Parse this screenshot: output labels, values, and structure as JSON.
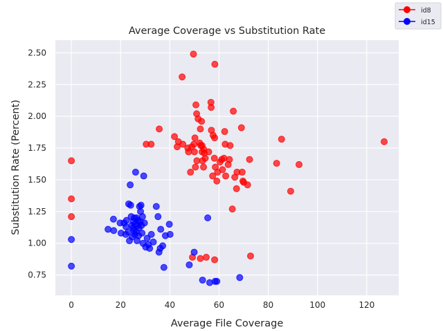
{
  "chart_data": {
    "type": "scatter",
    "title": "Average Coverage vs Substitution Rate",
    "xlabel": "Average File Coverage",
    "ylabel": "Substitution Rate (Percent)",
    "xlim": [
      -6.5,
      133
    ],
    "ylim": [
      0.59,
      2.6
    ],
    "xticks": [
      0,
      20,
      40,
      60,
      80,
      100,
      120
    ],
    "yticks": [
      0.75,
      1.0,
      1.25,
      1.5,
      1.75,
      2.0,
      2.25,
      2.5
    ],
    "ytick_labels": [
      "0.75",
      "1.00",
      "1.25",
      "1.50",
      "1.75",
      "2.00",
      "2.25",
      "2.50"
    ],
    "grid": true,
    "background": "#eaeaf2",
    "legend_position": "top-right (outside plot)",
    "series": [
      {
        "name": "id8",
        "color": "#ff0000",
        "marker": "circle",
        "points": [
          [
            0,
            1.65
          ],
          [
            0,
            1.35
          ],
          [
            0,
            1.21
          ],
          [
            30.4,
            1.78
          ],
          [
            32.4,
            1.78
          ],
          [
            35.7,
            1.9
          ],
          [
            41.9,
            1.84
          ],
          [
            43,
            1.76
          ],
          [
            43.5,
            1.8
          ],
          [
            45,
            2.31
          ],
          [
            45.3,
            1.78
          ],
          [
            47.3,
            1.75
          ],
          [
            47.6,
            1.72
          ],
          [
            48.4,
            1.56
          ],
          [
            48.9,
            1.76
          ],
          [
            49.2,
            0.89
          ],
          [
            49.6,
            2.49
          ],
          [
            49.8,
            1.78
          ],
          [
            50,
            1.72
          ],
          [
            50.2,
            1.83
          ],
          [
            50.4,
            1.6
          ],
          [
            50.6,
            2.09
          ],
          [
            51,
            1.65
          ],
          [
            50.9,
            2.02
          ],
          [
            51.5,
            1.98
          ],
          [
            52.1,
            1.79
          ],
          [
            52.4,
            1.9
          ],
          [
            52.4,
            0.88
          ],
          [
            52.6,
            1.77
          ],
          [
            52.9,
            1.96
          ],
          [
            53.1,
            1.72
          ],
          [
            53.1,
            1.77
          ],
          [
            53.3,
            1.65
          ],
          [
            53.7,
            1.6
          ],
          [
            53.8,
            1.74
          ],
          [
            54,
            1.71
          ],
          [
            54.4,
            1.67
          ],
          [
            54.8,
            0.89
          ],
          [
            55.8,
            1.72
          ],
          [
            56.7,
            2.11
          ],
          [
            56.8,
            2.07
          ],
          [
            56.9,
            1.89
          ],
          [
            57.4,
            1.53
          ],
          [
            57.6,
            1.85
          ],
          [
            58.1,
            1.67
          ],
          [
            58.2,
            0.87
          ],
          [
            58.2,
            1.83
          ],
          [
            58.3,
            2.41
          ],
          [
            58.5,
            1.6
          ],
          [
            59.1,
            1.49
          ],
          [
            59.4,
            1.56
          ],
          [
            60.4,
            1.64
          ],
          [
            61.1,
            1.66
          ],
          [
            61.4,
            1.58
          ],
          [
            62,
            1.67
          ],
          [
            62.3,
            1.88
          ],
          [
            62.5,
            1.78
          ],
          [
            62.7,
            1.53
          ],
          [
            63.7,
            1.62
          ],
          [
            64.2,
            1.66
          ],
          [
            64.5,
            1.77
          ],
          [
            65.4,
            1.27
          ],
          [
            65.8,
            2.04
          ],
          [
            66.4,
            1.52
          ],
          [
            67.1,
            1.43
          ],
          [
            67.3,
            1.56
          ],
          [
            69.1,
            1.91
          ],
          [
            69.4,
            1.56
          ],
          [
            69.7,
            1.49
          ],
          [
            70,
            1.48
          ],
          [
            71.6,
            1.46
          ],
          [
            72.4,
            1.66
          ],
          [
            72.8,
            0.9
          ],
          [
            83.4,
            1.63
          ],
          [
            85.4,
            1.82
          ],
          [
            89.1,
            1.41
          ],
          [
            92.5,
            1.62
          ],
          [
            127.1,
            1.8
          ]
        ]
      },
      {
        "name": "id15",
        "color": "#0000ff",
        "marker": "circle",
        "points": [
          [
            0,
            1.03
          ],
          [
            0,
            0.82
          ],
          [
            14.9,
            1.11
          ],
          [
            17.1,
            1.19
          ],
          [
            17.2,
            1.1
          ],
          [
            19.8,
            1.16
          ],
          [
            20.2,
            1.08
          ],
          [
            21.4,
            1.16
          ],
          [
            22.2,
            1.13
          ],
          [
            22.1,
            1.07
          ],
          [
            22.4,
            1.18
          ],
          [
            23.1,
            1.09
          ],
          [
            23.3,
            1.31
          ],
          [
            23.6,
            1.02
          ],
          [
            23.9,
            1.46
          ],
          [
            24.1,
            1.3
          ],
          [
            24.3,
            1.21
          ],
          [
            24.5,
            1.14
          ],
          [
            24.7,
            1.05
          ],
          [
            25,
            1.12
          ],
          [
            25.2,
            1.17
          ],
          [
            25.4,
            1.1
          ],
          [
            25.6,
            1.2
          ],
          [
            25.8,
            1.07
          ],
          [
            26,
            1.15
          ],
          [
            26.1,
            1.56
          ],
          [
            26.3,
            1.09
          ],
          [
            26.5,
            1.2
          ],
          [
            26.7,
            1.02
          ],
          [
            26.9,
            1.14
          ],
          [
            27.1,
            1.18
          ],
          [
            27.3,
            1.06
          ],
          [
            27.5,
            1.12
          ],
          [
            27.7,
            1.29
          ],
          [
            27.9,
            1.17
          ],
          [
            28.1,
            1.25
          ],
          [
            28.3,
            1.3
          ],
          [
            28.5,
            1.14
          ],
          [
            28.7,
            1.08
          ],
          [
            28.9,
            1.21
          ],
          [
            29.1,
            1.0
          ],
          [
            29.4,
            1.53
          ],
          [
            29.7,
            1.16
          ],
          [
            30.2,
            0.97
          ],
          [
            30.8,
            1.04
          ],
          [
            31.3,
            0.99
          ],
          [
            31.8,
            0.96
          ],
          [
            32.5,
            1.07
          ],
          [
            33.3,
            1.01
          ],
          [
            34.5,
            1.29
          ],
          [
            35.2,
            1.21
          ],
          [
            35.6,
            0.93
          ],
          [
            36.1,
            0.96
          ],
          [
            36.3,
            1.11
          ],
          [
            37.1,
            0.98
          ],
          [
            37.6,
            0.81
          ],
          [
            38.2,
            1.06
          ],
          [
            39.8,
            1.15
          ],
          [
            40.1,
            1.07
          ],
          [
            47.9,
            0.83
          ],
          [
            49.9,
            0.93
          ],
          [
            53.3,
            0.71
          ],
          [
            55.4,
            1.2
          ],
          [
            56.2,
            0.69
          ],
          [
            58.4,
            0.7
          ],
          [
            59.1,
            0.7
          ],
          [
            68.4,
            0.73
          ]
        ]
      }
    ]
  }
}
